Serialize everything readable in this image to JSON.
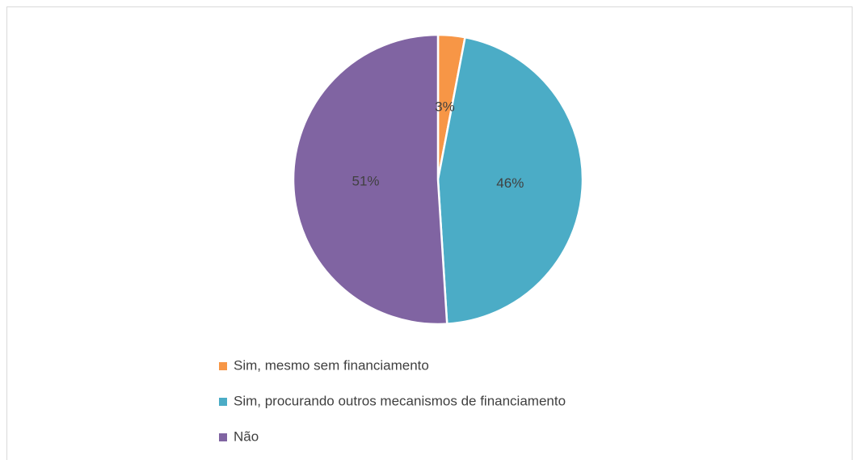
{
  "chart_data": {
    "type": "pie",
    "categories": [
      "Sim, mesmo sem financiamento",
      "Sim, procurando outros mecanismos de financiamento",
      "Não"
    ],
    "values": [
      3,
      46,
      51
    ],
    "value_labels": [
      "3%",
      "46%",
      "51%"
    ],
    "colors": [
      "#f79646",
      "#4bacc6",
      "#8064a2"
    ],
    "legend": "bottom"
  }
}
